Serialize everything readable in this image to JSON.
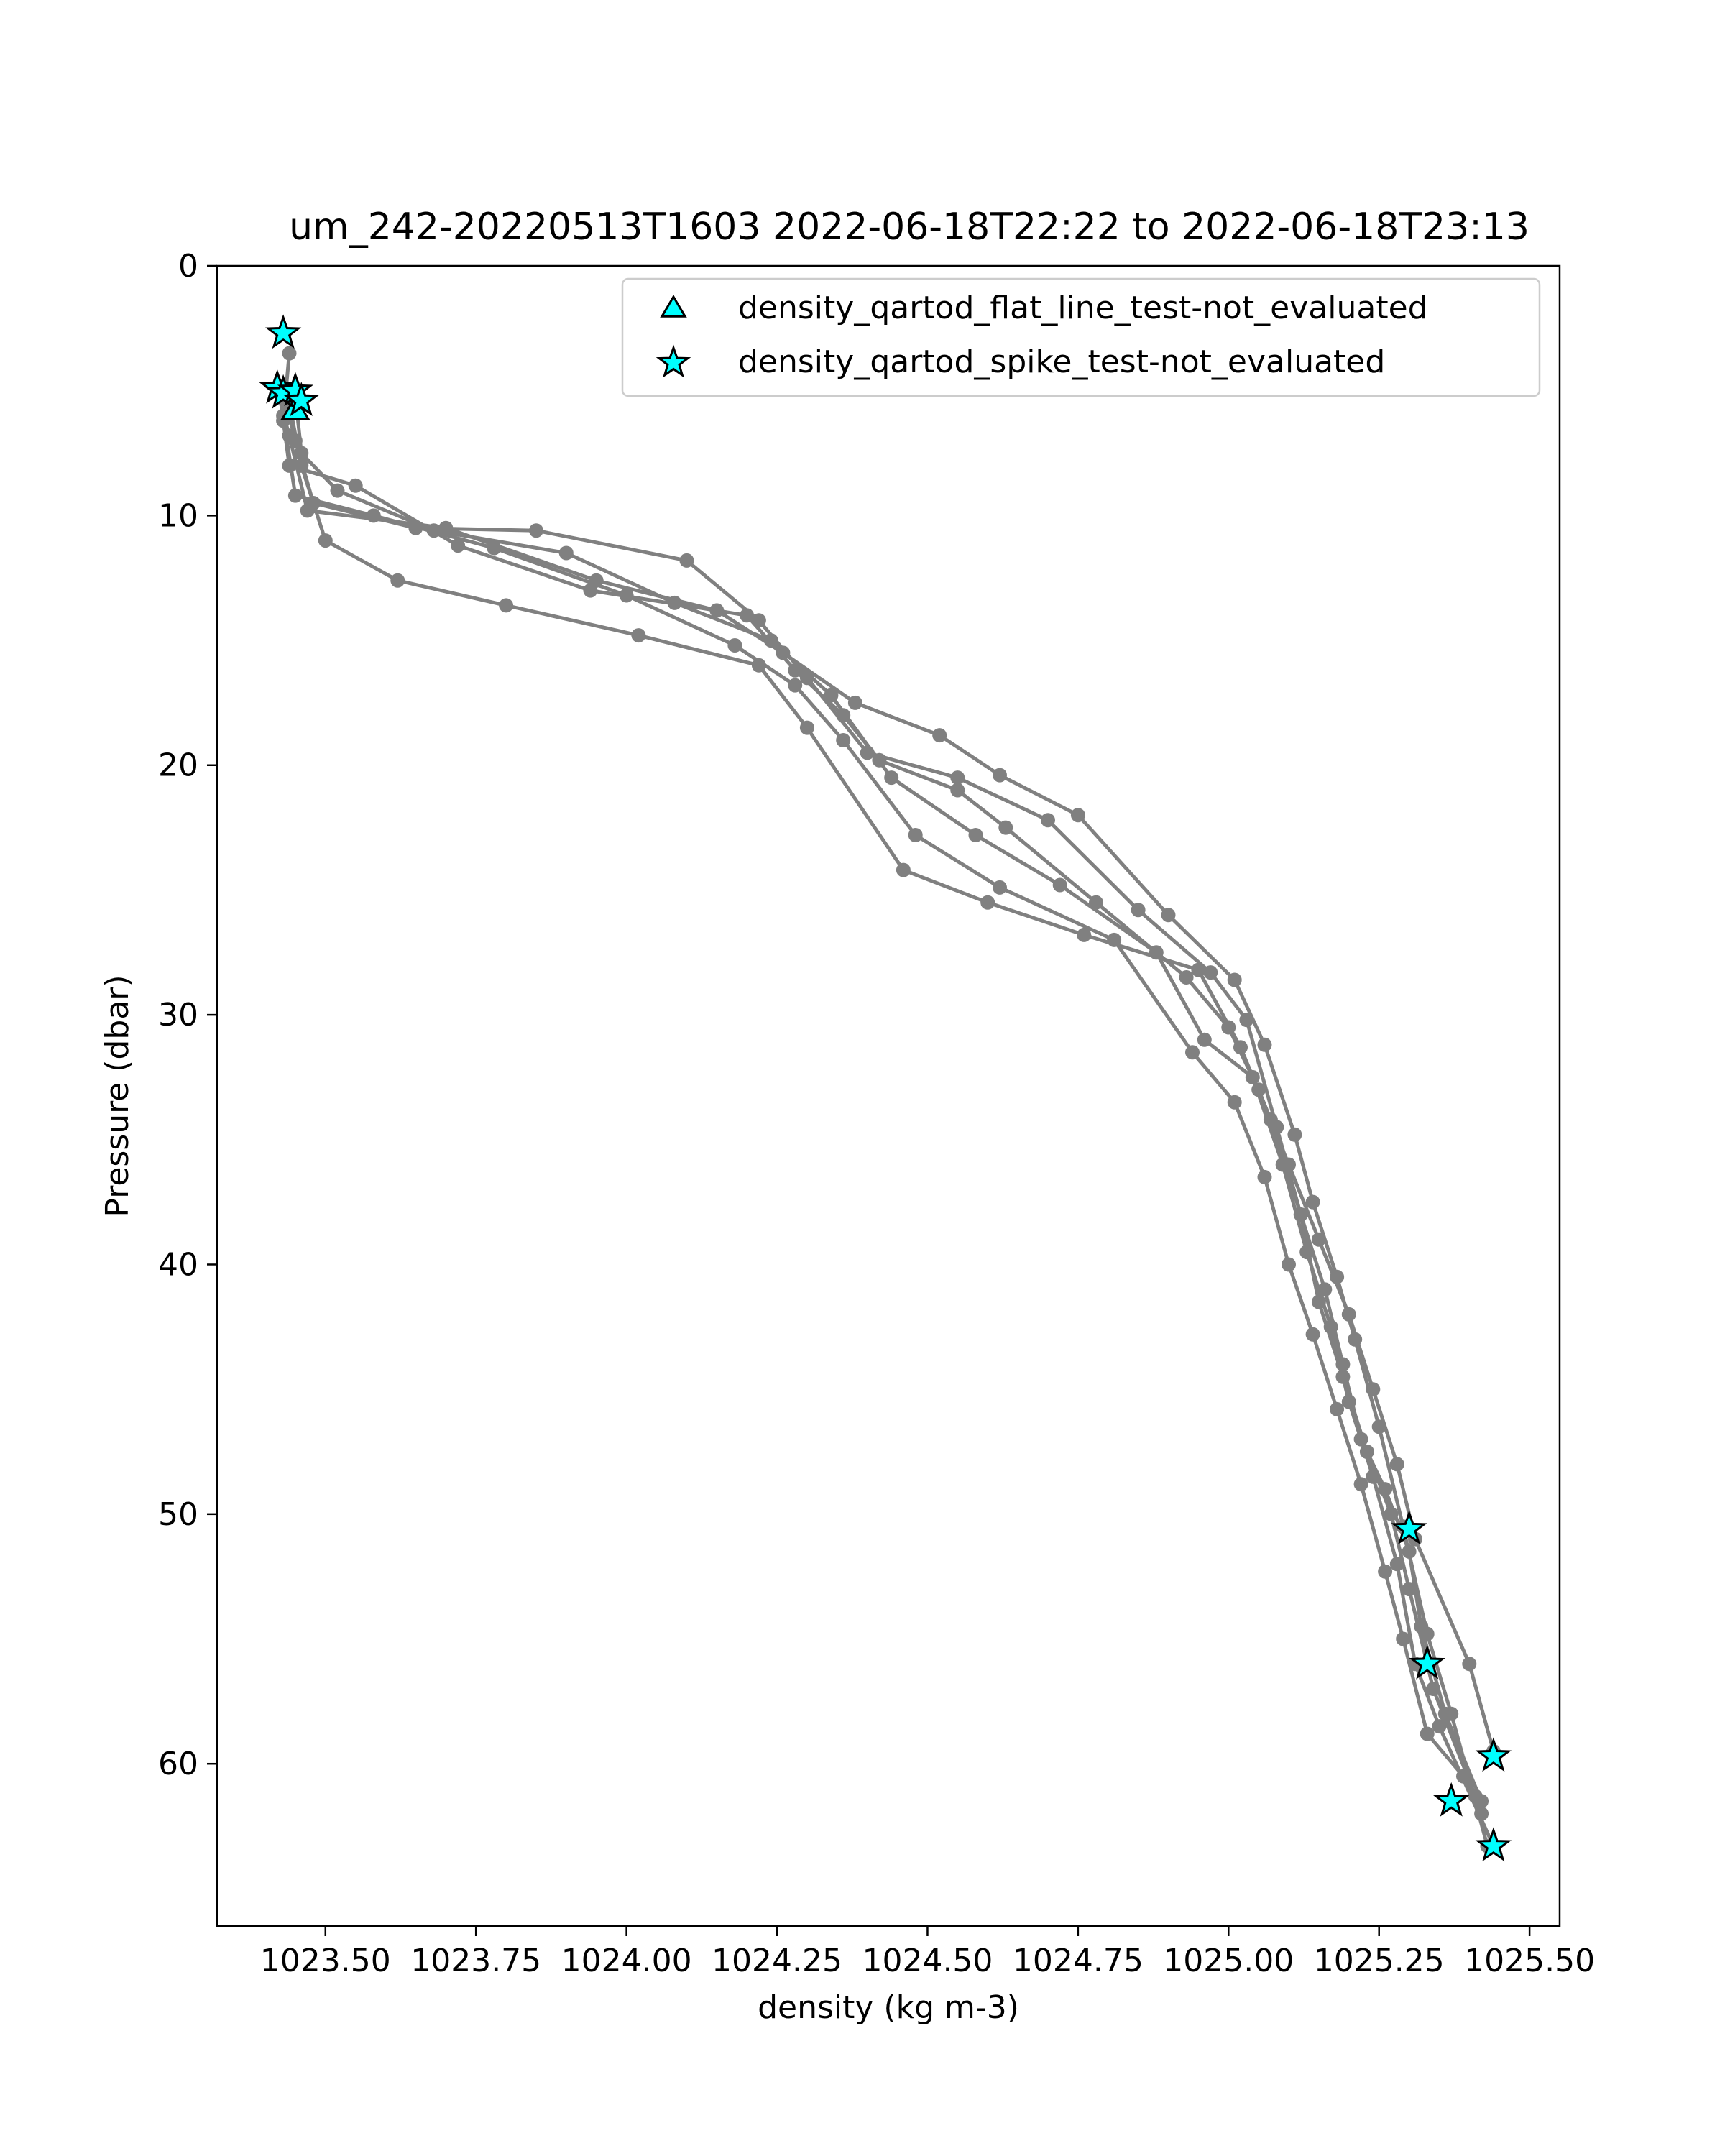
{
  "chart_data": {
    "type": "scatter",
    "title": "um_242-20220513T1603 2022-06-18T22:22 to 2022-06-18T23:13",
    "xlabel": "density (kg m-3)",
    "ylabel": "Pressure (dbar)",
    "xlim": [
      1023.32,
      1025.55
    ],
    "ylim": [
      66.5,
      0
    ],
    "y_inverted": true,
    "grid": false,
    "legend_position": "top-right",
    "x_ticks": [
      1023.5,
      1023.75,
      1024.0,
      1024.25,
      1024.5,
      1024.75,
      1025.0,
      1025.25,
      1025.5
    ],
    "x_tick_labels": [
      "1023.50",
      "1023.75",
      "1024.00",
      "1024.25",
      "1024.50",
      "1024.75",
      "1025.00",
      "1025.25",
      "1025.50"
    ],
    "y_ticks": [
      0,
      10,
      20,
      30,
      40,
      50,
      60
    ],
    "y_tick_labels": [
      "0",
      "10",
      "20",
      "30",
      "40",
      "50",
      "60"
    ],
    "colors": {
      "profile_line": "#808080",
      "marker_fill": "#00ffff",
      "marker_edge": "#000000"
    },
    "legend": [
      {
        "label": "density_qartod_flat_line_test-not_evaluated",
        "marker": "triangle"
      },
      {
        "label": "density_qartod_spike_test-not_evaluated",
        "marker": "star"
      }
    ],
    "profiles": [
      {
        "x": [
          1023.44,
          1023.43,
          1023.44,
          1023.55,
          1023.72,
          1023.94,
          1024.2,
          1024.28,
          1024.36,
          1024.42,
          1024.55,
          1024.63,
          1024.78,
          1024.93,
          1025.0,
          1025.05,
          1025.1,
          1025.15,
          1025.2,
          1025.24,
          1025.28,
          1025.31,
          1025.4,
          1025.44
        ],
        "y": [
          3.5,
          6.2,
          8.0,
          8.8,
          11.2,
          13.0,
          14.0,
          16.2,
          18.0,
          19.8,
          21.0,
          22.5,
          25.5,
          28.5,
          30.5,
          33.0,
          36.0,
          39.0,
          42.0,
          45.0,
          48.0,
          51.0,
          56.0,
          59.5
        ]
      },
      {
        "x": [
          1023.43,
          1023.45,
          1023.48,
          1023.65,
          1023.85,
          1024.1,
          1024.22,
          1024.3,
          1024.4,
          1024.55,
          1024.7,
          1024.85,
          1024.97,
          1025.03,
          1025.08,
          1025.12,
          1025.16,
          1025.19,
          1025.22,
          1025.26,
          1025.3,
          1025.32,
          1025.36,
          1025.42
        ],
        "y": [
          5.0,
          7.0,
          9.5,
          10.5,
          10.6,
          11.8,
          14.2,
          16.5,
          19.5,
          20.5,
          22.2,
          25.8,
          28.3,
          30.2,
          34.5,
          38.0,
          41.0,
          44.0,
          47.0,
          49.0,
          51.5,
          54.5,
          58.0,
          61.5
        ]
      },
      {
        "x": [
          1023.42,
          1023.44,
          1023.47,
          1023.7,
          1023.95,
          1024.15,
          1024.26,
          1024.38,
          1024.52,
          1024.62,
          1024.75,
          1024.9,
          1025.01,
          1025.06,
          1025.11,
          1025.14,
          1025.18,
          1025.21,
          1025.25,
          1025.29,
          1025.33,
          1025.37,
          1025.43
        ],
        "y": [
          5.0,
          6.8,
          9.8,
          10.5,
          12.6,
          13.8,
          15.5,
          17.5,
          18.8,
          20.4,
          22.0,
          26.0,
          28.6,
          31.2,
          34.8,
          37.5,
          40.5,
          43.0,
          46.5,
          50.5,
          54.8,
          58.0,
          63.3
        ]
      },
      {
        "x": [
          1023.45,
          1023.46,
          1023.52,
          1023.68,
          1023.9,
          1024.08,
          1024.24,
          1024.34,
          1024.44,
          1024.58,
          1024.72,
          1024.88,
          1024.96,
          1025.04,
          1025.09,
          1025.13,
          1025.17,
          1025.2,
          1025.24,
          1025.28,
          1025.31,
          1025.35,
          1025.44
        ],
        "y": [
          5.2,
          7.5,
          9.0,
          10.6,
          11.5,
          13.5,
          15.0,
          17.2,
          20.5,
          22.8,
          24.8,
          27.5,
          31.0,
          32.5,
          36.0,
          39.5,
          42.5,
          45.5,
          48.5,
          52.0,
          56.0,
          58.5,
          63.3
        ]
      },
      {
        "x": [
          1023.44,
          1023.46,
          1023.5,
          1023.62,
          1023.8,
          1024.02,
          1024.22,
          1024.3,
          1024.46,
          1024.6,
          1024.76,
          1024.95,
          1025.02,
          1025.07,
          1025.12,
          1025.15,
          1025.19,
          1025.23,
          1025.27,
          1025.3,
          1025.34,
          1025.41
        ],
        "y": [
          5.5,
          8.0,
          11.0,
          12.6,
          13.6,
          14.8,
          16.0,
          18.5,
          24.2,
          25.5,
          26.8,
          28.2,
          31.3,
          34.2,
          38.0,
          41.5,
          44.5,
          47.5,
          50.0,
          53.0,
          57.0,
          61.3
        ]
      },
      {
        "x": [
          1023.43,
          1023.45,
          1023.58,
          1023.78,
          1024.0,
          1024.18,
          1024.28,
          1024.36,
          1024.48,
          1024.62,
          1024.81,
          1024.94,
          1025.01,
          1025.06,
          1025.1,
          1025.14,
          1025.18,
          1025.22,
          1025.26,
          1025.29,
          1025.33,
          1025.39,
          1025.42
        ],
        "y": [
          6.0,
          9.2,
          10.0,
          11.3,
          13.2,
          15.2,
          16.8,
          19.0,
          22.8,
          24.9,
          27.0,
          31.5,
          33.5,
          36.5,
          40.0,
          42.8,
          45.8,
          48.8,
          52.3,
          55.0,
          58.8,
          60.5,
          62.0
        ]
      }
    ],
    "flat_line_points": [
      {
        "x": 1023.45,
        "y": 5.8
      }
    ],
    "spike_points": [
      {
        "x": 1023.43,
        "y": 2.7
      },
      {
        "x": 1023.42,
        "y": 4.9
      },
      {
        "x": 1023.43,
        "y": 5.1
      },
      {
        "x": 1023.45,
        "y": 5.0
      },
      {
        "x": 1023.46,
        "y": 5.4
      },
      {
        "x": 1025.3,
        "y": 50.6
      },
      {
        "x": 1025.33,
        "y": 56.0
      },
      {
        "x": 1025.44,
        "y": 59.7
      },
      {
        "x": 1025.37,
        "y": 61.5
      },
      {
        "x": 1025.44,
        "y": 63.3
      }
    ]
  }
}
